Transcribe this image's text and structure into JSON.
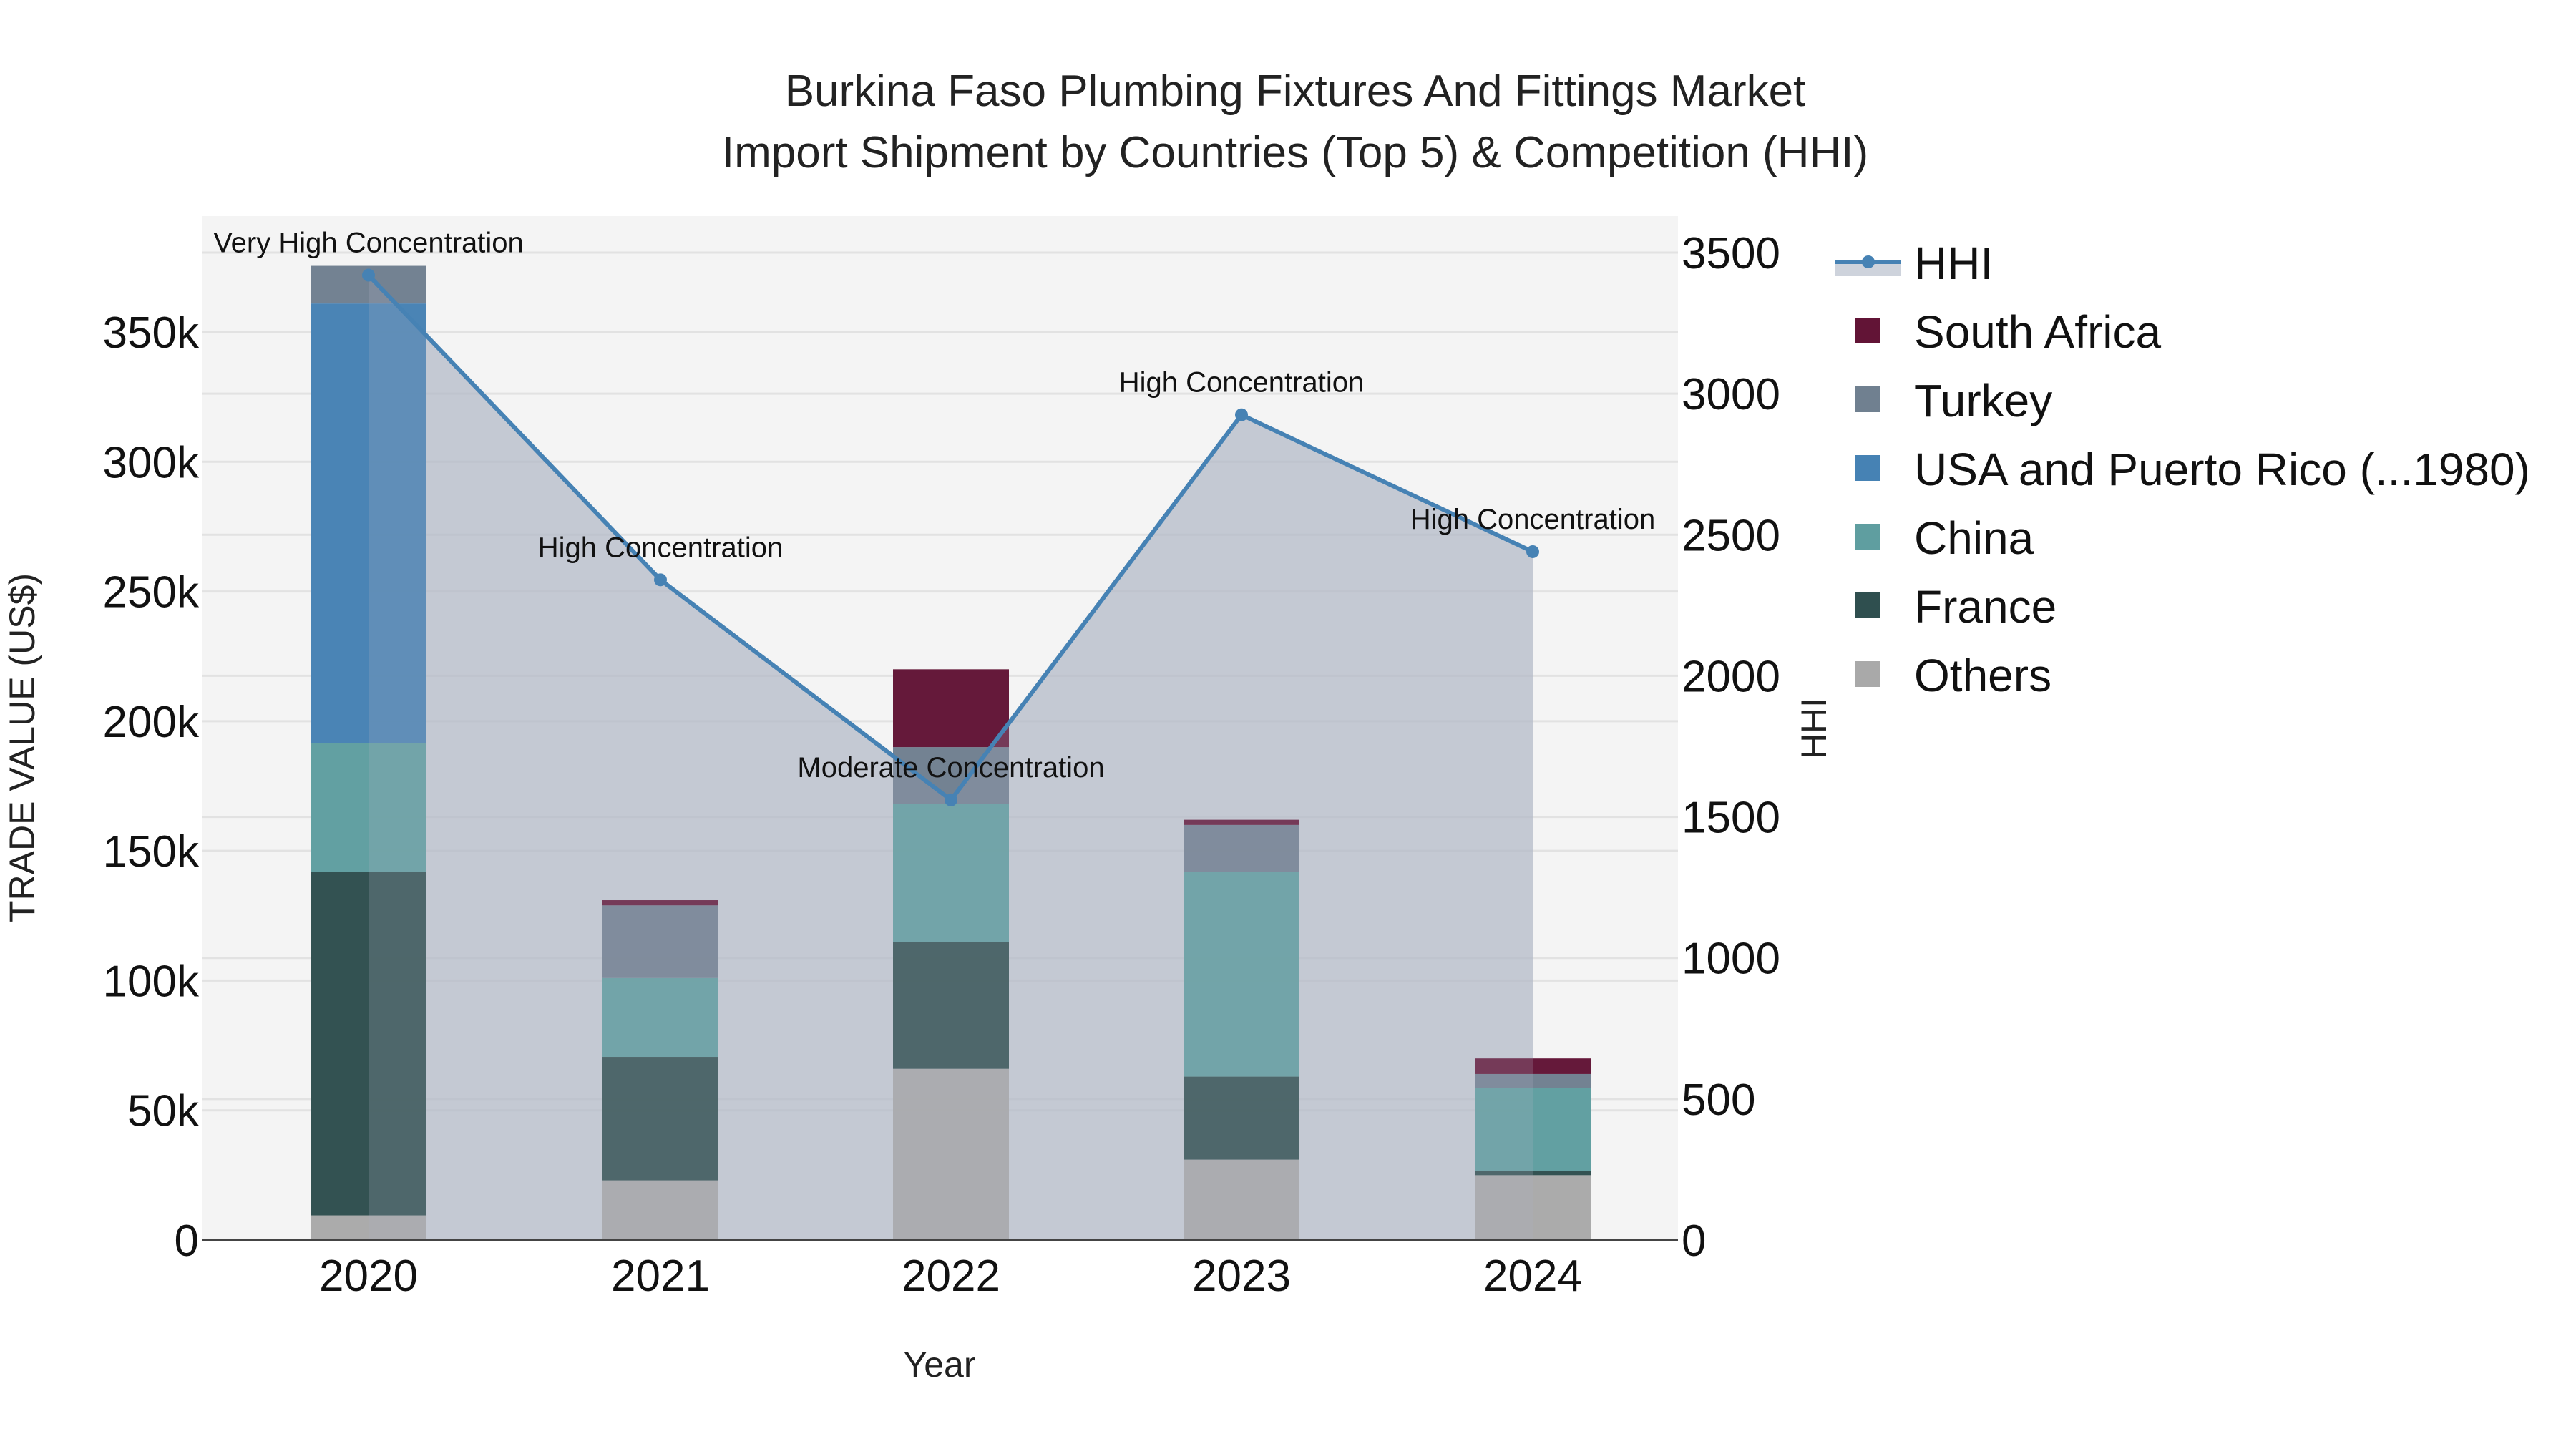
{
  "title": {
    "line1": "Burkina Faso Plumbing Fixtures And Fittings Market",
    "line2": "Import Shipment by Countries (Top 5) & Competition (HHI)"
  },
  "axes": {
    "x_title": "Year",
    "y_left_title": "TRADE VALUE (US$)",
    "y_right_title": "HHI",
    "y_left_ticks": [
      "0",
      "50k",
      "100k",
      "150k",
      "200k",
      "250k",
      "300k",
      "350k"
    ],
    "y_right_ticks": [
      "0",
      "500",
      "1000",
      "1500",
      "2000",
      "2500",
      "3000",
      "3500"
    ]
  },
  "legend": {
    "items": [
      {
        "label": "HHI",
        "type": "line",
        "color": "#4682b4"
      },
      {
        "label": "South Africa",
        "type": "box",
        "color": "#621436"
      },
      {
        "label": "Turkey",
        "type": "box",
        "color": "#708090"
      },
      {
        "label": "USA and Puerto Rico (...1980)",
        "type": "box",
        "color": "#4682b4"
      },
      {
        "label": "China",
        "type": "box",
        "color": "#5f9ea0"
      },
      {
        "label": "France",
        "type": "box",
        "color": "#2f4f4f"
      },
      {
        "label": "Others",
        "type": "box",
        "color": "#a9a9a9"
      }
    ]
  },
  "annotations": [
    {
      "year": "2020",
      "text": "Very High Concentration"
    },
    {
      "year": "2021",
      "text": "High Concentration"
    },
    {
      "year": "2022",
      "text": "Moderate Concentration"
    },
    {
      "year": "2023",
      "text": "High Concentration"
    },
    {
      "year": "2024",
      "text": "High Concentration"
    }
  ],
  "chart_data": {
    "type": "bar",
    "stacked": true,
    "title": "Burkina Faso Plumbing Fixtures And Fittings Market Import Shipment by Countries (Top 5) & Competition (HHI)",
    "xlabel": "Year",
    "ylabel": "TRADE VALUE (US$)",
    "y2label": "HHI",
    "categories": [
      "2020",
      "2021",
      "2022",
      "2023",
      "2024"
    ],
    "ylim": [
      0,
      378000
    ],
    "y2lim": [
      0,
      3620
    ],
    "grid": true,
    "legend_position": "right",
    "series": [
      {
        "name": "Others",
        "color": "#a9a9a9",
        "values": [
          9500,
          23000,
          66000,
          31000,
          25000
        ]
      },
      {
        "name": "France",
        "color": "#2f4f4f",
        "values": [
          132500,
          47600,
          49000,
          32000,
          1500
        ]
      },
      {
        "name": "China",
        "color": "#5f9ea0",
        "values": [
          49500,
          30400,
          53000,
          79000,
          32000
        ]
      },
      {
        "name": "USA and Puerto Rico (...1980)",
        "color": "#4682b4",
        "values": [
          169500,
          0,
          0,
          0,
          0
        ]
      },
      {
        "name": "Turkey",
        "color": "#708090",
        "values": [
          14500,
          28000,
          22000,
          18000,
          5500
        ]
      },
      {
        "name": "South Africa",
        "color": "#621436",
        "values": [
          0,
          2000,
          30000,
          2000,
          6000
        ]
      }
    ],
    "line_series": {
      "name": "HHI",
      "axis": "y2",
      "type": "line+area",
      "color": "#4682b4",
      "values": [
        3420,
        2340,
        1560,
        2925,
        2440
      ],
      "labels": [
        "Very High Concentration",
        "High Concentration",
        "Moderate Concentration",
        "High Concentration",
        "High Concentration"
      ]
    }
  }
}
